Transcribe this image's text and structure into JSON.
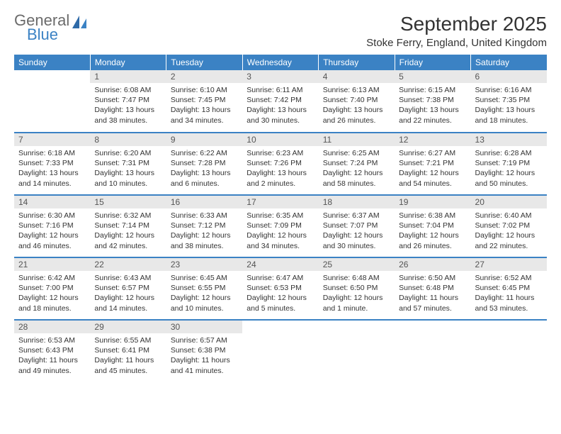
{
  "logo": {
    "line1": "General",
    "line2": "Blue"
  },
  "title": "September 2025",
  "location": "Stoke Ferry, England, United Kingdom",
  "colors": {
    "header_bg": "#3b82c4",
    "header_text": "#ffffff",
    "daynum_bg": "#e8e8e8",
    "text": "#333333",
    "logo_gray": "#6b6b6b",
    "logo_blue": "#3b82c4"
  },
  "weekdays": [
    "Sunday",
    "Monday",
    "Tuesday",
    "Wednesday",
    "Thursday",
    "Friday",
    "Saturday"
  ],
  "weeks": [
    [
      null,
      {
        "n": "1",
        "sunrise": "6:08 AM",
        "sunset": "7:47 PM",
        "daylight": "13 hours and 38 minutes."
      },
      {
        "n": "2",
        "sunrise": "6:10 AM",
        "sunset": "7:45 PM",
        "daylight": "13 hours and 34 minutes."
      },
      {
        "n": "3",
        "sunrise": "6:11 AM",
        "sunset": "7:42 PM",
        "daylight": "13 hours and 30 minutes."
      },
      {
        "n": "4",
        "sunrise": "6:13 AM",
        "sunset": "7:40 PM",
        "daylight": "13 hours and 26 minutes."
      },
      {
        "n": "5",
        "sunrise": "6:15 AM",
        "sunset": "7:38 PM",
        "daylight": "13 hours and 22 minutes."
      },
      {
        "n": "6",
        "sunrise": "6:16 AM",
        "sunset": "7:35 PM",
        "daylight": "13 hours and 18 minutes."
      }
    ],
    [
      {
        "n": "7",
        "sunrise": "6:18 AM",
        "sunset": "7:33 PM",
        "daylight": "13 hours and 14 minutes."
      },
      {
        "n": "8",
        "sunrise": "6:20 AM",
        "sunset": "7:31 PM",
        "daylight": "13 hours and 10 minutes."
      },
      {
        "n": "9",
        "sunrise": "6:22 AM",
        "sunset": "7:28 PM",
        "daylight": "13 hours and 6 minutes."
      },
      {
        "n": "10",
        "sunrise": "6:23 AM",
        "sunset": "7:26 PM",
        "daylight": "13 hours and 2 minutes."
      },
      {
        "n": "11",
        "sunrise": "6:25 AM",
        "sunset": "7:24 PM",
        "daylight": "12 hours and 58 minutes."
      },
      {
        "n": "12",
        "sunrise": "6:27 AM",
        "sunset": "7:21 PM",
        "daylight": "12 hours and 54 minutes."
      },
      {
        "n": "13",
        "sunrise": "6:28 AM",
        "sunset": "7:19 PM",
        "daylight": "12 hours and 50 minutes."
      }
    ],
    [
      {
        "n": "14",
        "sunrise": "6:30 AM",
        "sunset": "7:16 PM",
        "daylight": "12 hours and 46 minutes."
      },
      {
        "n": "15",
        "sunrise": "6:32 AM",
        "sunset": "7:14 PM",
        "daylight": "12 hours and 42 minutes."
      },
      {
        "n": "16",
        "sunrise": "6:33 AM",
        "sunset": "7:12 PM",
        "daylight": "12 hours and 38 minutes."
      },
      {
        "n": "17",
        "sunrise": "6:35 AM",
        "sunset": "7:09 PM",
        "daylight": "12 hours and 34 minutes."
      },
      {
        "n": "18",
        "sunrise": "6:37 AM",
        "sunset": "7:07 PM",
        "daylight": "12 hours and 30 minutes."
      },
      {
        "n": "19",
        "sunrise": "6:38 AM",
        "sunset": "7:04 PM",
        "daylight": "12 hours and 26 minutes."
      },
      {
        "n": "20",
        "sunrise": "6:40 AM",
        "sunset": "7:02 PM",
        "daylight": "12 hours and 22 minutes."
      }
    ],
    [
      {
        "n": "21",
        "sunrise": "6:42 AM",
        "sunset": "7:00 PM",
        "daylight": "12 hours and 18 minutes."
      },
      {
        "n": "22",
        "sunrise": "6:43 AM",
        "sunset": "6:57 PM",
        "daylight": "12 hours and 14 minutes."
      },
      {
        "n": "23",
        "sunrise": "6:45 AM",
        "sunset": "6:55 PM",
        "daylight": "12 hours and 10 minutes."
      },
      {
        "n": "24",
        "sunrise": "6:47 AM",
        "sunset": "6:53 PM",
        "daylight": "12 hours and 5 minutes."
      },
      {
        "n": "25",
        "sunrise": "6:48 AM",
        "sunset": "6:50 PM",
        "daylight": "12 hours and 1 minute."
      },
      {
        "n": "26",
        "sunrise": "6:50 AM",
        "sunset": "6:48 PM",
        "daylight": "11 hours and 57 minutes."
      },
      {
        "n": "27",
        "sunrise": "6:52 AM",
        "sunset": "6:45 PM",
        "daylight": "11 hours and 53 minutes."
      }
    ],
    [
      {
        "n": "28",
        "sunrise": "6:53 AM",
        "sunset": "6:43 PM",
        "daylight": "11 hours and 49 minutes."
      },
      {
        "n": "29",
        "sunrise": "6:55 AM",
        "sunset": "6:41 PM",
        "daylight": "11 hours and 45 minutes."
      },
      {
        "n": "30",
        "sunrise": "6:57 AM",
        "sunset": "6:38 PM",
        "daylight": "11 hours and 41 minutes."
      },
      null,
      null,
      null,
      null
    ]
  ],
  "labels": {
    "sunrise": "Sunrise:",
    "sunset": "Sunset:",
    "daylight": "Daylight:"
  }
}
